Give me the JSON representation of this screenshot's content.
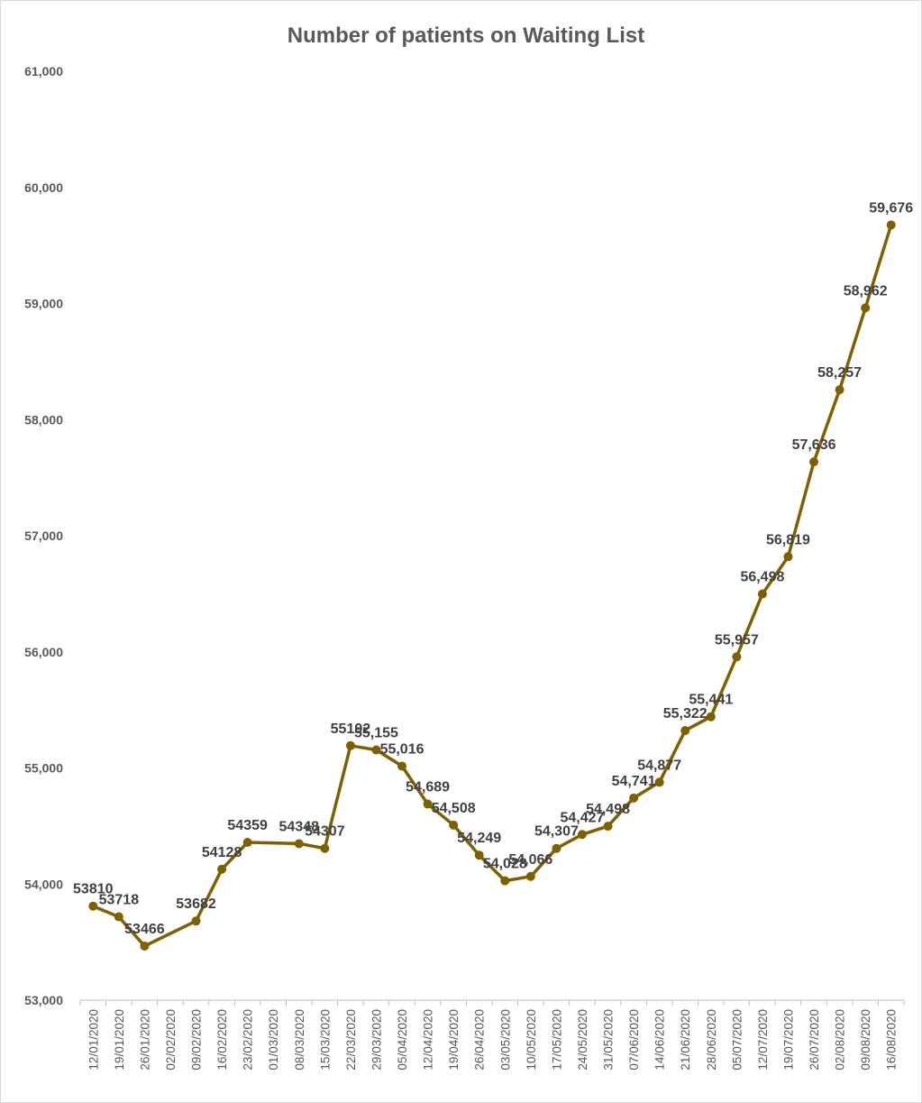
{
  "chart_data": {
    "type": "line",
    "title": "Number of patients on Waiting List",
    "xlabel": "",
    "ylabel": "",
    "ylim": [
      53000,
      61000
    ],
    "y_ticks": [
      "53,000",
      "54,000",
      "55,000",
      "56,000",
      "57,000",
      "58,000",
      "59,000",
      "60,000",
      "61,000"
    ],
    "grid": false,
    "legend": "none",
    "line_color": "#7f6000",
    "categories": [
      "12/01/2020",
      "19/01/2020",
      "26/01/2020",
      "02/02/2020",
      "09/02/2020",
      "16/02/2020",
      "23/02/2020",
      "01/03/2020",
      "08/03/2020",
      "15/03/2020",
      "22/03/2020",
      "29/03/2020",
      "05/04/2020",
      "12/04/2020",
      "19/04/2020",
      "26/04/2020",
      "03/05/2020",
      "10/05/2020",
      "17/05/2020",
      "24/05/2020",
      "31/05/2020",
      "07/06/2020",
      "14/06/2020",
      "21/06/2020",
      "28/06/2020",
      "05/07/2020",
      "12/07/2020",
      "19/07/2020",
      "26/07/2020",
      "02/08/2020",
      "09/08/2020",
      "16/08/2020"
    ],
    "values": [
      53810,
      53718,
      53466,
      null,
      53682,
      54128,
      54359,
      null,
      54348,
      54307,
      55192,
      55155,
      55016,
      54689,
      54508,
      54249,
      54028,
      54066,
      54307,
      54427,
      54498,
      54741,
      54877,
      55322,
      55441,
      55957,
      56498,
      56819,
      57636,
      58257,
      58962,
      59676
    ],
    "data_labels": [
      "53810",
      "53718",
      "53466",
      null,
      "53682",
      "54128",
      "54359",
      null,
      "54348",
      "54307",
      "55192",
      "55,155",
      "55,016",
      "54,689",
      "54,508",
      "54,249",
      "54,028",
      "54,066",
      "54,307",
      "54,427",
      "54,498",
      "54,741",
      "54,877",
      "55,322",
      "55,441",
      "55,957",
      "56,498",
      "56,819",
      "57,636",
      "58,257",
      "58,962",
      "59,676"
    ]
  }
}
